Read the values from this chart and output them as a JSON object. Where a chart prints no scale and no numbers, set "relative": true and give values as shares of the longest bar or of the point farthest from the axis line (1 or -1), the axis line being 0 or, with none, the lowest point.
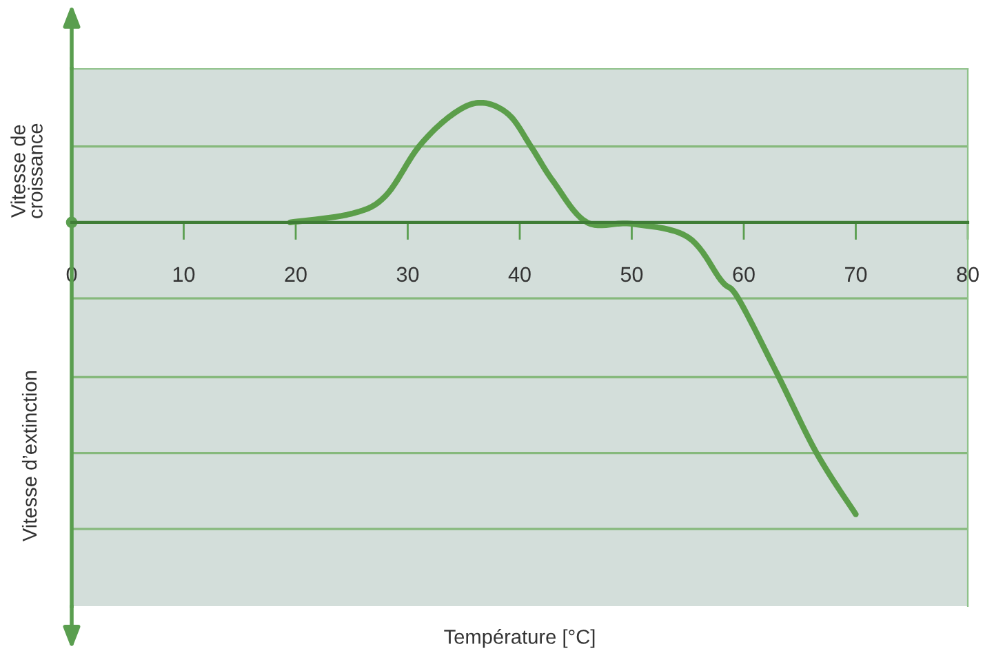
{
  "chart_data": {
    "type": "line",
    "relative": true,
    "ylabel": "Vitesse de\ncroissance",
    "annotations": [
      "Vitesse d’extinction",
      "Température [°C]"
    ],
    "x": [
      19.5,
      25,
      28,
      31,
      34,
      36.5,
      39,
      41,
      43,
      46,
      50,
      55,
      58,
      59.5,
      63,
      66.5,
      70
    ],
    "series": [
      {
        "color": "#5b9e4a",
        "values": [
          0,
          0.03,
          0.09,
          0.26,
          0.37,
          0.41,
          0.37,
          0.26,
          0.14,
          0,
          -0.005,
          -0.05,
          -0.2,
          -0.26,
          -0.52,
          -0.79,
          -1
        ]
      }
    ],
    "xlim": [
      0,
      80
    ],
    "xticks": [
      0,
      10,
      20,
      30,
      40,
      50,
      60,
      70,
      80
    ],
    "ref_lines": [
      {
        "axis": "y",
        "value": 0.26,
        "color": "#86b97c"
      },
      {
        "axis": "y",
        "value": -0.26,
        "color": "#86b97c"
      },
      {
        "axis": "y",
        "value": -0.53,
        "color": "#86b97c"
      },
      {
        "axis": "y",
        "value": -0.79,
        "color": "#86b97c"
      },
      {
        "axis": "y",
        "value": -1.05,
        "color": "#86b97c"
      }
    ],
    "marker": "none",
    "line_style": "solid"
  }
}
